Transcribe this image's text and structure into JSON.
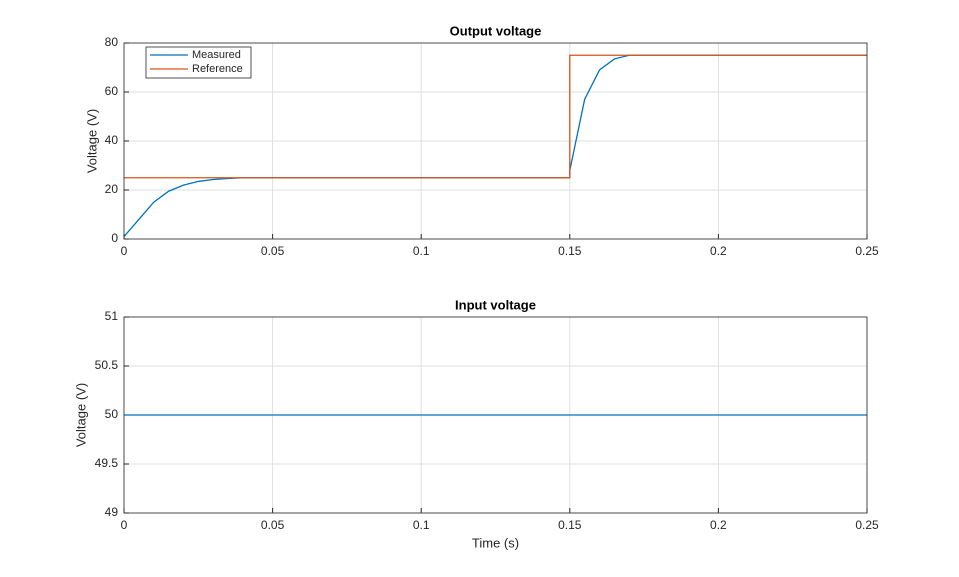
{
  "chart_data": [
    {
      "type": "line",
      "title": "Output voltage",
      "y_label": "Voltage (V)",
      "x": [
        0,
        0.005,
        0.01,
        0.015,
        0.02,
        0.025,
        0.03,
        0.035,
        0.04,
        0.05,
        0.1,
        0.15,
        0.15,
        0.155,
        0.16,
        0.165,
        0.17,
        0.2,
        0.25
      ],
      "series": [
        {
          "name": "Measured",
          "color": "#0072BD",
          "values": [
            1,
            8,
            15,
            19.5,
            22,
            23.5,
            24.3,
            24.7,
            25,
            25,
            25,
            25,
            28,
            57,
            69,
            73.5,
            75,
            75,
            75
          ]
        },
        {
          "name": "Reference",
          "color": "#D95319",
          "values": [
            25,
            25,
            25,
            25,
            25,
            25,
            25,
            25,
            25,
            25,
            25,
            25,
            75,
            75,
            75,
            75,
            75,
            75,
            75
          ]
        }
      ],
      "xlim": [
        0,
        0.25
      ],
      "xticks": [
        0,
        0.05,
        0.1,
        0.15,
        0.2,
        0.25
      ],
      "ylim": [
        0,
        80
      ],
      "yticks": [
        0,
        20,
        40,
        60,
        80
      ],
      "grid": true,
      "legend": "upper left"
    },
    {
      "type": "line",
      "title": "Input voltage",
      "y_label": "Voltage (V)",
      "x_label": "Time (s)",
      "x": [
        0,
        0.25
      ],
      "series": [
        {
          "color": "#0072BD",
          "values": [
            50,
            50
          ]
        }
      ],
      "xlim": [
        0,
        0.25
      ],
      "xticks": [
        0,
        0.05,
        0.1,
        0.15,
        0.2,
        0.25
      ],
      "ylim": [
        49,
        51
      ],
      "yticks": [
        49,
        49.5,
        50,
        50.5,
        51
      ],
      "grid": true
    }
  ]
}
